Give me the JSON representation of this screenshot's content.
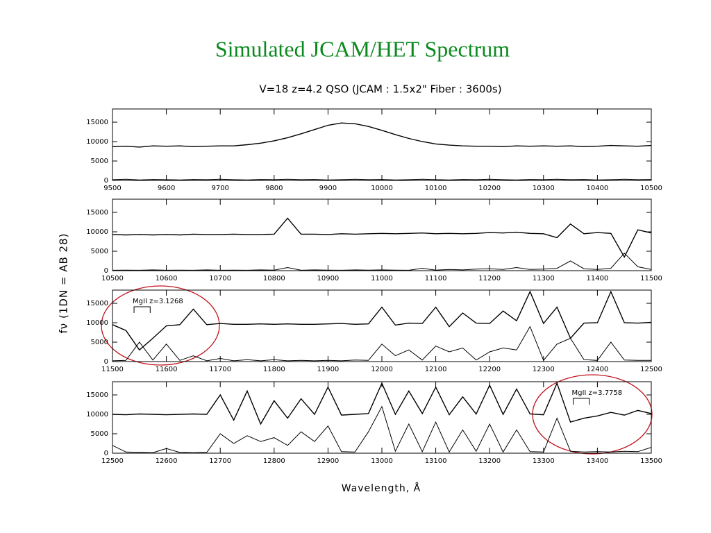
{
  "title": "Simulated JCAM/HET Spectrum",
  "figure": {
    "title": "V=18 z=4.2 QSO (JCAM : 1.5x2\" Fiber : 3600s)",
    "ylabel": "fν (1DN = AB 28)",
    "xlabel": "Wavelength, Å"
  },
  "chart_data": [
    {
      "type": "line",
      "xlim": [
        9500,
        10500
      ],
      "xticks": [
        9500,
        9600,
        9700,
        9800,
        9900,
        10000,
        10100,
        10200,
        10300,
        10400,
        10500
      ],
      "ylim": [
        0,
        18400
      ],
      "yticks": [
        0,
        5000,
        10000,
        15000
      ],
      "x": [
        9500,
        9525,
        9550,
        9575,
        9600,
        9625,
        9650,
        9675,
        9700,
        9725,
        9750,
        9775,
        9800,
        9825,
        9850,
        9875,
        9900,
        9925,
        9950,
        9975,
        10000,
        10025,
        10050,
        10075,
        10100,
        10125,
        10150,
        10175,
        10200,
        10225,
        10250,
        10275,
        10300,
        10325,
        10350,
        10375,
        10400,
        10425,
        10450,
        10475,
        10500
      ],
      "series": [
        {
          "color": "#000000",
          "values": [
            8700,
            8800,
            8600,
            8900,
            8800,
            8900,
            8700,
            8800,
            8900,
            8900,
            9200,
            9600,
            10200,
            11000,
            12000,
            13100,
            14200,
            14800,
            14600,
            13900,
            12900,
            11800,
            10800,
            10000,
            9400,
            9100,
            8900,
            8800,
            8800,
            8700,
            8900,
            8800,
            8900,
            8800,
            8900,
            8700,
            8800,
            9000,
            8900,
            8800,
            9000
          ]
        },
        {
          "color": "#000000",
          "values": [
            200,
            300,
            150,
            250,
            200,
            150,
            250,
            200,
            300,
            200,
            150,
            250,
            200,
            300,
            200,
            250,
            150,
            200,
            300,
            200,
            250,
            150,
            200,
            300,
            200,
            150,
            250,
            200,
            300,
            200,
            150,
            250,
            200,
            300,
            200,
            250,
            150,
            200,
            300,
            200,
            250
          ]
        }
      ]
    },
    {
      "type": "line",
      "xlim": [
        10500,
        11500
      ],
      "xticks": [
        10500,
        10600,
        10700,
        10800,
        10900,
        11000,
        11100,
        11200,
        11300,
        11400,
        11500
      ],
      "ylim": [
        0,
        18400
      ],
      "yticks": [
        0,
        5000,
        10000,
        15000
      ],
      "x": [
        10500,
        10525,
        10550,
        10575,
        10600,
        10625,
        10650,
        10675,
        10700,
        10725,
        10750,
        10775,
        10800,
        10825,
        10850,
        10875,
        10900,
        10925,
        10950,
        10975,
        11000,
        11025,
        11050,
        11075,
        11100,
        11125,
        11150,
        11175,
        11200,
        11225,
        11250,
        11275,
        11300,
        11325,
        11350,
        11375,
        11400,
        11425,
        11450,
        11475,
        11500
      ],
      "series": [
        {
          "color": "#000000",
          "values": [
            9300,
            9200,
            9300,
            9200,
            9300,
            9200,
            9400,
            9300,
            9300,
            9400,
            9300,
            9300,
            9400,
            13500,
            9400,
            9400,
            9300,
            9500,
            9400,
            9500,
            9600,
            9500,
            9600,
            9700,
            9500,
            9600,
            9500,
            9600,
            9800,
            9700,
            9900,
            9600,
            9500,
            8500,
            12000,
            9500,
            9800,
            9600,
            3500,
            10500,
            9700
          ]
        },
        {
          "color": "#000000",
          "values": [
            100,
            150,
            100,
            200,
            100,
            150,
            100,
            200,
            100,
            150,
            100,
            200,
            150,
            800,
            100,
            200,
            150,
            100,
            200,
            150,
            200,
            150,
            100,
            600,
            150,
            300,
            200,
            400,
            500,
            300,
            800,
            300,
            400,
            600,
            2500,
            500,
            300,
            600,
            4500,
            1000,
            300
          ]
        }
      ]
    },
    {
      "type": "line",
      "xlim": [
        11500,
        12500
      ],
      "xticks": [
        11500,
        11600,
        11700,
        11800,
        11900,
        12000,
        12100,
        12200,
        12300,
        12400,
        12500
      ],
      "ylim": [
        0,
        18400
      ],
      "yticks": [
        0,
        5000,
        10000,
        15000
      ],
      "x": [
        11500,
        11525,
        11550,
        11575,
        11600,
        11625,
        11650,
        11675,
        11700,
        11725,
        11750,
        11775,
        11800,
        11825,
        11850,
        11875,
        11900,
        11925,
        11950,
        11975,
        12000,
        12025,
        12050,
        12075,
        12100,
        12125,
        12150,
        12175,
        12200,
        12225,
        12250,
        12275,
        12300,
        12325,
        12350,
        12375,
        12400,
        12425,
        12450,
        12475,
        12500
      ],
      "series": [
        {
          "color": "#000000",
          "values": [
            9500,
            8000,
            3000,
            6000,
            9200,
            9500,
            13500,
            9500,
            9800,
            9600,
            9600,
            9700,
            9600,
            9700,
            9600,
            9600,
            9700,
            9800,
            9600,
            9700,
            14000,
            9400,
            9900,
            9800,
            14000,
            9000,
            12500,
            9900,
            9800,
            13000,
            10500,
            18000,
            9800,
            14000,
            6000,
            9900,
            10000,
            18000,
            10000,
            9900,
            10100
          ]
        },
        {
          "color": "#000000",
          "values": [
            200,
            300,
            5000,
            400,
            4500,
            300,
            1500,
            200,
            800,
            200,
            500,
            200,
            500,
            200,
            300,
            200,
            300,
            200,
            400,
            300,
            4500,
            1500,
            3000,
            400,
            4000,
            2500,
            3500,
            400,
            2500,
            3500,
            3000,
            9000,
            300,
            4500,
            6000,
            500,
            300,
            5000,
            400,
            300,
            300
          ]
        }
      ]
    },
    {
      "type": "line",
      "xlim": [
        12500,
        13500
      ],
      "xticks": [
        12500,
        12600,
        12700,
        12800,
        12900,
        13000,
        13100,
        13200,
        13300,
        13400,
        13500
      ],
      "ylim": [
        0,
        18400
      ],
      "yticks": [
        0,
        5000,
        10000,
        15000
      ],
      "x": [
        12500,
        12525,
        12550,
        12575,
        12600,
        12625,
        12650,
        12675,
        12700,
        12725,
        12750,
        12775,
        12800,
        12825,
        12850,
        12875,
        12900,
        12925,
        12950,
        12975,
        13000,
        13025,
        13050,
        13075,
        13100,
        13125,
        13150,
        13175,
        13200,
        13225,
        13250,
        13275,
        13300,
        13325,
        13350,
        13375,
        13400,
        13425,
        13450,
        13475,
        13500
      ],
      "series": [
        {
          "color": "#000000",
          "values": [
            10000,
            9900,
            10100,
            10000,
            9900,
            10000,
            10100,
            10000,
            15000,
            8500,
            16000,
            7500,
            13500,
            9000,
            14000,
            10000,
            17000,
            9800,
            10000,
            10200,
            18000,
            10000,
            16000,
            10200,
            17000,
            9900,
            14500,
            10100,
            17500,
            10000,
            16500,
            10100,
            9900,
            18000,
            8000,
            9000,
            9600,
            10500,
            9800,
            11000,
            10200
          ]
        },
        {
          "color": "#000000",
          "values": [
            2000,
            300,
            200,
            150,
            1200,
            200,
            150,
            200,
            5000,
            2500,
            4500,
            3000,
            4000,
            2000,
            5500,
            3000,
            7000,
            400,
            300,
            5500,
            12000,
            500,
            7500,
            400,
            8000,
            300,
            6000,
            500,
            7500,
            300,
            6000,
            400,
            300,
            9000,
            500,
            300,
            400,
            300,
            500,
            400,
            1500
          ]
        }
      ],
      "annotations": []
    }
  ],
  "annotations": [
    {
      "chart": 2,
      "text": "MgII  z=3.1268",
      "x": [
        11540,
        11570
      ]
    },
    {
      "chart": 3,
      "text": "MgII  z=3.7758",
      "x": [
        13355,
        13385
      ]
    }
  ]
}
